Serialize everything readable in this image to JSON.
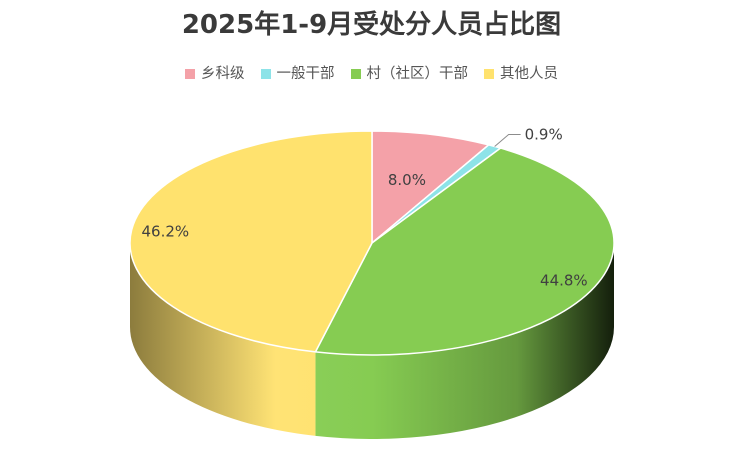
{
  "chart_data": {
    "type": "pie",
    "title": "2025年1-9月受处分人员占比图",
    "legend_position": "top",
    "slices": [
      {
        "name": "乡科级",
        "value": 8.0,
        "label": "8.0%",
        "color": "#F4A1A8"
      },
      {
        "name": "一般干部",
        "value": 0.9,
        "label": "0.9%",
        "color": "#8DE3E8"
      },
      {
        "name": "村（社区）干部",
        "value": 44.8,
        "label": "44.8%",
        "color": "#86CC52"
      },
      {
        "name": "其他人员",
        "value": 46.2,
        "label": "46.2%",
        "color": "#FFE26E"
      }
    ]
  }
}
